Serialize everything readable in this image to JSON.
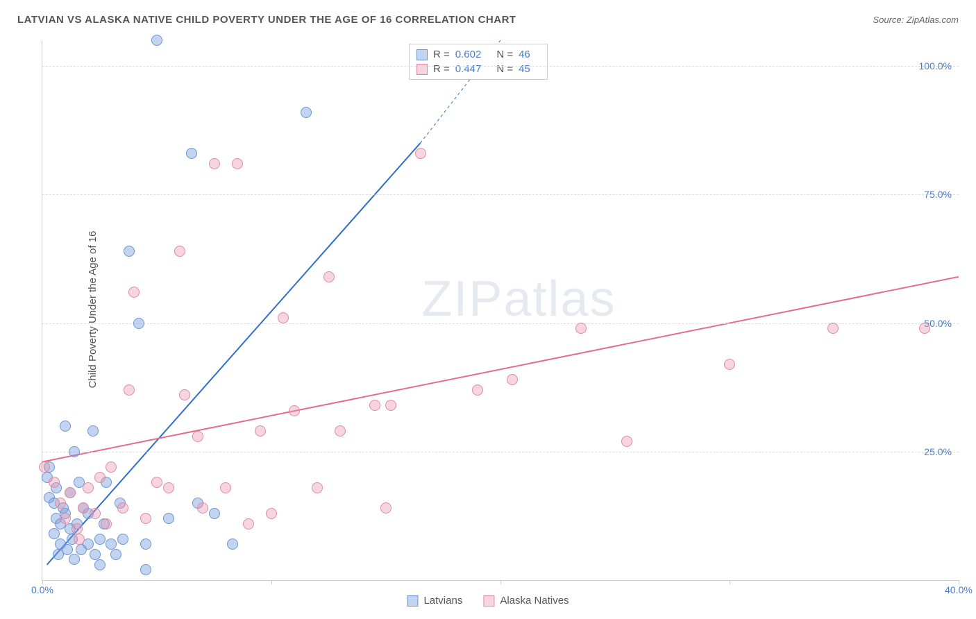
{
  "header": {
    "title": "LATVIAN VS ALASKA NATIVE CHILD POVERTY UNDER THE AGE OF 16 CORRELATION CHART",
    "source": "Source: ZipAtlas.com"
  },
  "watermark": {
    "zip": "ZIP",
    "atlas": "atlas"
  },
  "chart": {
    "type": "scatter",
    "ylabel": "Child Poverty Under the Age of 16",
    "xlim": [
      0,
      40
    ],
    "ylim": [
      0,
      105
    ],
    "yticks": [
      25,
      50,
      75,
      100
    ],
    "ytick_labels": [
      "25.0%",
      "50.0%",
      "75.0%",
      "100.0%"
    ],
    "xticks": [
      0,
      10,
      20,
      30,
      40
    ],
    "xtick_labels": [
      "0.0%",
      "",
      "",
      "",
      "40.0%"
    ],
    "grid_color": "#dddddd",
    "axis_color": "#cccccc",
    "text_color": "#4a7bc8",
    "background_color": "#ffffff",
    "marker_radius": 8,
    "marker_opacity": 0.55,
    "line_width": 2,
    "series": [
      {
        "name": "Latvians",
        "color_fill": "rgba(120,160,220,0.45)",
        "color_stroke": "#6a95d4",
        "line_color": "#2f6fc9",
        "stats": {
          "r": "0.602",
          "n": "46"
        },
        "trend": {
          "x1": 0.2,
          "y1": 3,
          "x2": 16.5,
          "y2": 85,
          "dash_x2": 20,
          "dash_y2": 105
        },
        "points": [
          [
            0.2,
            20
          ],
          [
            0.3,
            22
          ],
          [
            0.3,
            16
          ],
          [
            0.5,
            15
          ],
          [
            0.5,
            9
          ],
          [
            0.6,
            12
          ],
          [
            0.6,
            18
          ],
          [
            0.7,
            5
          ],
          [
            0.8,
            7
          ],
          [
            0.8,
            11
          ],
          [
            0.9,
            14
          ],
          [
            1.0,
            30
          ],
          [
            1.0,
            13
          ],
          [
            1.1,
            6
          ],
          [
            1.2,
            17
          ],
          [
            1.2,
            10
          ],
          [
            1.3,
            8
          ],
          [
            1.4,
            4
          ],
          [
            1.5,
            11
          ],
          [
            1.6,
            19
          ],
          [
            1.7,
            6
          ],
          [
            1.8,
            14
          ],
          [
            2.0,
            7
          ],
          [
            2.0,
            13
          ],
          [
            2.2,
            29
          ],
          [
            2.3,
            5
          ],
          [
            2.5,
            8
          ],
          [
            2.5,
            3
          ],
          [
            2.7,
            11
          ],
          [
            3.0,
            7
          ],
          [
            3.2,
            5
          ],
          [
            3.4,
            15
          ],
          [
            3.5,
            8
          ],
          [
            3.8,
            64
          ],
          [
            4.2,
            50
          ],
          [
            4.5,
            7
          ],
          [
            4.5,
            2
          ],
          [
            5.0,
            105
          ],
          [
            5.5,
            12
          ],
          [
            6.5,
            83
          ],
          [
            6.8,
            15
          ],
          [
            7.5,
            13
          ],
          [
            8.3,
            7
          ],
          [
            11.5,
            91
          ],
          [
            1.4,
            25
          ],
          [
            2.8,
            19
          ]
        ]
      },
      {
        "name": "Alaska Natives",
        "color_fill": "rgba(235,150,175,0.4)",
        "color_stroke": "#e08aa5",
        "line_color": "#e56b8f",
        "stats": {
          "r": "0.447",
          "n": "45"
        },
        "trend": {
          "x1": 0,
          "y1": 23,
          "x2": 40,
          "y2": 59
        },
        "points": [
          [
            0.1,
            22
          ],
          [
            0.5,
            19
          ],
          [
            0.8,
            15
          ],
          [
            1.0,
            12
          ],
          [
            1.2,
            17
          ],
          [
            1.5,
            10
          ],
          [
            1.8,
            14
          ],
          [
            2.0,
            18
          ],
          [
            2.3,
            13
          ],
          [
            2.5,
            20
          ],
          [
            2.8,
            11
          ],
          [
            3.0,
            22
          ],
          [
            3.5,
            14
          ],
          [
            3.8,
            37
          ],
          [
            4.0,
            56
          ],
          [
            4.5,
            12
          ],
          [
            5.0,
            19
          ],
          [
            5.5,
            18
          ],
          [
            6.0,
            64
          ],
          [
            6.2,
            36
          ],
          [
            6.8,
            28
          ],
          [
            7.0,
            14
          ],
          [
            7.5,
            81
          ],
          [
            8.0,
            18
          ],
          [
            8.5,
            81
          ],
          [
            9.0,
            11
          ],
          [
            9.5,
            29
          ],
          [
            10.0,
            13
          ],
          [
            10.5,
            51
          ],
          [
            11.0,
            33
          ],
          [
            12.0,
            18
          ],
          [
            12.5,
            59
          ],
          [
            13.0,
            29
          ],
          [
            14.5,
            34
          ],
          [
            15.0,
            14
          ],
          [
            15.2,
            34
          ],
          [
            16.5,
            83
          ],
          [
            19.0,
            37
          ],
          [
            20.5,
            39
          ],
          [
            23.5,
            49
          ],
          [
            25.5,
            27
          ],
          [
            30.0,
            42
          ],
          [
            34.5,
            49
          ],
          [
            38.5,
            49
          ],
          [
            1.6,
            8
          ]
        ]
      }
    ]
  },
  "legend": {
    "series1": "Latvians",
    "series2": "Alaska Natives",
    "r_label": "R =",
    "n_label": "N ="
  }
}
